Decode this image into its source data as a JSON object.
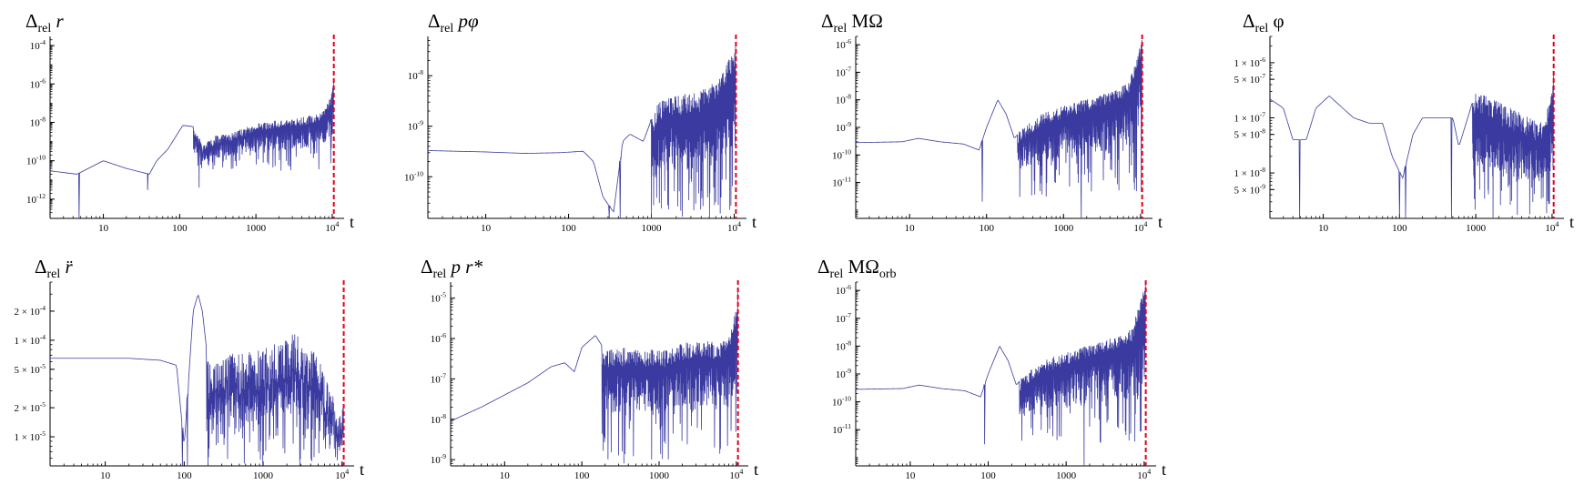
{
  "colors": {
    "series": "#3a3aa0",
    "marker": "#e3001b",
    "axis": "#000000"
  },
  "chart_data": [
    {
      "id": "rel-r",
      "type": "line",
      "title": {
        "main": "Δ",
        "sub": "rel",
        "rest": " r"
      },
      "xlabel": "t",
      "xscale": "log",
      "yscale": "log",
      "xlim": [
        2,
        11500
      ],
      "ylim": [
        1e-13,
        0.0003
      ],
      "xticks": [
        10,
        100,
        1000,
        10000
      ],
      "xtick_labels": [
        "10",
        "100",
        "1000",
        "10^4"
      ],
      "yticks": [
        1e-12,
        1e-10,
        1e-08,
        1e-06,
        0.0001
      ],
      "ytick_labels": [
        "10^-12",
        "10^-10",
        "10^-8",
        "10^-6",
        "10^-4"
      ],
      "marker_x": 10500,
      "series": [
        {
          "dips": [
            [
              4.8,
              1e-13
            ],
            [
              38,
              3e-12
            ],
            [
              180,
              4e-12
            ],
            [
              240,
              6e-11
            ],
            [
              300,
              2e-10
            ]
          ],
          "envelope": [
            [
              2,
              3e-11
            ],
            [
              4.5,
              2e-11
            ],
            [
              10,
              1e-10
            ],
            [
              20,
              4e-11
            ],
            [
              40,
              2e-11
            ],
            [
              50,
              1e-10
            ],
            [
              70,
              4e-10
            ],
            [
              110,
              7e-09
            ],
            [
              150,
              6e-09
            ],
            [
              200,
              6e-10
            ],
            [
              300,
              2e-09
            ],
            [
              500,
              3e-09
            ],
            [
              1000,
              1e-08
            ],
            [
              3000,
              1.5e-08
            ],
            [
              7000,
              3e-08
            ],
            [
              9500,
              2e-07
            ],
            [
              10400,
              2e-06
            ]
          ],
          "noise": {
            "from": 150,
            "to": 10400,
            "floor": 3e-11,
            "nodes": 260
          }
        }
      ]
    },
    {
      "id": "rel-p-phi",
      "type": "line",
      "title": {
        "main": "Δ",
        "sub": "rel",
        "rest": " pφ"
      },
      "xlabel": "t",
      "xscale": "log",
      "yscale": "log",
      "xlim": [
        2,
        11500
      ],
      "ylim": [
        1.5e-11,
        6e-08
      ],
      "xticks": [
        10,
        100,
        1000,
        10000
      ],
      "xtick_labels": [
        "10",
        "100",
        "1000",
        "10^4"
      ],
      "yticks": [
        1e-10,
        1e-09,
        1e-08
      ],
      "ytick_labels": [
        "10^-10",
        "10^-9",
        "10^-8"
      ],
      "marker_x": 10500,
      "series": [
        {
          "dips": [
            [
              310,
              1.5e-11
            ],
            [
              420,
              1.5e-11
            ],
            [
              1000,
              1.5e-11
            ]
          ],
          "envelope": [
            [
              2,
              3.3e-10
            ],
            [
              10,
              3.1e-10
            ],
            [
              30,
              2.9e-10
            ],
            [
              80,
              3e-10
            ],
            [
              150,
              3.2e-10
            ],
            [
              200,
              2e-10
            ],
            [
              260,
              4e-11
            ],
            [
              350,
              2e-11
            ],
            [
              450,
              5e-10
            ],
            [
              550,
              7e-10
            ],
            [
              800,
              5e-10
            ],
            [
              1200,
              3e-09
            ],
            [
              2000,
              4e-09
            ],
            [
              4000,
              5e-09
            ],
            [
              7000,
              1e-08
            ],
            [
              10400,
              4e-08
            ]
          ],
          "noise": {
            "from": 1000,
            "to": 10400,
            "floor": 1.5e-11,
            "nodes": 220
          }
        }
      ]
    },
    {
      "id": "rel-MOmega",
      "type": "line",
      "title": {
        "main": "Δ",
        "sub": "rel",
        "rest": " MΩ"
      },
      "xlabel": "t",
      "xscale": "log",
      "yscale": "log",
      "xlim": [
        2,
        11500
      ],
      "ylim": [
        5e-13,
        2e-06
      ],
      "xticks": [
        10,
        100,
        1000,
        10000
      ],
      "xtick_labels": [
        "10",
        "100",
        "1000",
        "10^4"
      ],
      "yticks": [
        1e-11,
        1e-10,
        1e-09,
        1e-08,
        1e-07,
        1e-06
      ],
      "ytick_labels": [
        "10^-11",
        "10^-10",
        "10^-9",
        "10^-8",
        "10^-7",
        "10^-6"
      ],
      "marker_x": 10500,
      "series": [
        {
          "dips": [
            [
              88,
              2e-12
            ],
            [
              270,
              3e-12
            ],
            [
              1700,
              5e-13
            ]
          ],
          "envelope": [
            [
              2,
              2.8e-10
            ],
            [
              8,
              3e-10
            ],
            [
              13,
              4e-10
            ],
            [
              25,
              3e-10
            ],
            [
              50,
              2.5e-10
            ],
            [
              80,
              1.5e-10
            ],
            [
              100,
              1e-09
            ],
            [
              140,
              1e-08
            ],
            [
              180,
              3e-09
            ],
            [
              230,
              4e-10
            ],
            [
              300,
              1e-09
            ],
            [
              500,
              3e-09
            ],
            [
              1000,
              6e-09
            ],
            [
              3000,
              1.5e-08
            ],
            [
              7000,
              4e-08
            ],
            [
              10400,
              1.5e-06
            ]
          ],
          "noise": {
            "from": 250,
            "to": 10400,
            "floor": 3e-12,
            "nodes": 240
          }
        }
      ]
    },
    {
      "id": "rel-phi",
      "type": "line",
      "title": {
        "main": "Δ",
        "sub": "rel",
        "rest": " φ"
      },
      "xlabel": "t",
      "xscale": "log",
      "yscale": "log",
      "xlim": [
        2,
        11500
      ],
      "ylim": [
        1.5e-09,
        3e-06
      ],
      "xticks": [
        10,
        100,
        1000,
        10000
      ],
      "xtick_labels": [
        "10",
        "100",
        "1000",
        "10^4"
      ],
      "yticks": [
        5e-09,
        1e-08,
        5e-08,
        1e-07,
        5e-07,
        1e-06
      ],
      "ytick_labels": [
        "5 × 10^-9",
        "1 × 10^-8",
        "5 × 10^-8",
        "1 × 10^-7",
        "5 × 10^-7",
        "1 × 10^-6"
      ],
      "marker_x": 10500,
      "series": [
        {
          "dips": [
            [
              4.9,
              1.5e-09
            ],
            [
              100,
              1.5e-09
            ],
            [
              120,
              1.5e-09
            ],
            [
              480,
              1.5e-09
            ]
          ],
          "envelope": [
            [
              2,
              2.2e-07
            ],
            [
              3,
              1.5e-07
            ],
            [
              4,
              4e-08
            ],
            [
              6,
              4e-08
            ],
            [
              8,
              1.5e-07
            ],
            [
              12,
              2.5e-07
            ],
            [
              18,
              1.5e-07
            ],
            [
              25,
              1e-07
            ],
            [
              40,
              8e-08
            ],
            [
              60,
              8e-08
            ],
            [
              80,
              2e-08
            ],
            [
              110,
              8e-09
            ],
            [
              150,
              5e-08
            ],
            [
              200,
              1e-07
            ],
            [
              400,
              1e-07
            ],
            [
              500,
              1e-07
            ],
            [
              600,
              3e-08
            ],
            [
              1000,
              3e-07
            ],
            [
              2000,
              2e-07
            ],
            [
              5000,
              1e-07
            ],
            [
              8000,
              8e-08
            ],
            [
              10400,
              6e-07
            ]
          ],
          "noise": {
            "from": 900,
            "to": 10400,
            "floor": 1.5e-09,
            "nodes": 230
          }
        }
      ]
    },
    {
      "id": "rel-rddot",
      "type": "line",
      "title": {
        "main": "Δ",
        "sub": "rel",
        "rest": " r̈"
      },
      "xlabel": "t",
      "xscale": "log",
      "yscale": "log",
      "xlim": [
        2,
        11500
      ],
      "ylim": [
        5e-06,
        0.0004
      ],
      "xticks": [
        10,
        100,
        1000,
        10000
      ],
      "xtick_labels": [
        "10",
        "100",
        "1000",
        "10^4"
      ],
      "yticks": [
        1e-05,
        2e-05,
        5e-05,
        0.0001,
        0.0002
      ],
      "ytick_labels": [
        "1 × 10^-5",
        "2 × 10^-5",
        "5 × 10^-5",
        "1 × 10^-4",
        "2 × 10^-4"
      ],
      "marker_x": 10500,
      "series": [
        {
          "dips": [
            [
              95,
              5e-06
            ],
            [
              110,
              5e-06
            ],
            [
              200,
              5e-06
            ]
          ],
          "envelope": [
            [
              2,
              6.5e-05
            ],
            [
              20,
              6.5e-05
            ],
            [
              50,
              6.2e-05
            ],
            [
              80,
              5.5e-05
            ],
            [
              100,
              8e-06
            ],
            [
              130,
              0.0002
            ],
            [
              150,
              0.0003
            ],
            [
              170,
              0.0002
            ],
            [
              200,
              6e-05
            ],
            [
              300,
              7e-05
            ],
            [
              1000,
              8e-05
            ],
            [
              2500,
              0.00012
            ],
            [
              4000,
              9e-05
            ],
            [
              7000,
              4e-05
            ],
            [
              10400,
              2e-05
            ]
          ],
          "noise": {
            "from": 190,
            "to": 10400,
            "floor": 5e-06,
            "nodes": 230
          }
        }
      ]
    },
    {
      "id": "rel-p-rstar",
      "type": "line",
      "title": {
        "main": "Δ",
        "sub": "rel",
        "rest": " p r*"
      },
      "xlabel": "t",
      "xscale": "log",
      "yscale": "log",
      "xlim": [
        2,
        11500
      ],
      "ylim": [
        7e-10,
        2.5e-05
      ],
      "xticks": [
        10,
        100,
        1000,
        10000
      ],
      "xtick_labels": [
        "10",
        "100",
        "1000",
        "10^4"
      ],
      "yticks": [
        1e-09,
        1e-08,
        1e-07,
        1e-06,
        1e-05
      ],
      "ytick_labels": [
        "10^-9",
        "10^-8",
        "10^-7",
        "10^-6",
        "10^-5"
      ],
      "marker_x": 10500,
      "series": [
        {
          "dips": [
            [
              240,
              1.5e-09
            ],
            [
              350,
              8e-10
            ],
            [
              800,
              1e-09
            ]
          ],
          "envelope": [
            [
              2,
              9e-09
            ],
            [
              5,
              2e-08
            ],
            [
              10,
              4e-08
            ],
            [
              20,
              8e-08
            ],
            [
              40,
              2e-07
            ],
            [
              60,
              2.5e-07
            ],
            [
              80,
              1.5e-07
            ],
            [
              100,
              6e-07
            ],
            [
              150,
              1.2e-06
            ],
            [
              200,
              5e-07
            ],
            [
              400,
              6e-07
            ],
            [
              1000,
              5e-07
            ],
            [
              3000,
              1e-06
            ],
            [
              6000,
              8e-07
            ],
            [
              9000,
              2e-06
            ],
            [
              10400,
              1.5e-05
            ]
          ],
          "noise": {
            "from": 180,
            "to": 10400,
            "floor": 1e-09,
            "nodes": 230
          }
        }
      ]
    },
    {
      "id": "rel-MOmega-orb",
      "type": "line",
      "title": {
        "main": "Δ",
        "sub": "rel",
        "rest": " MΩ",
        "rest_sub": "orb"
      },
      "xlabel": "t",
      "xscale": "log",
      "yscale": "log",
      "xlim": [
        2,
        11500
      ],
      "ylim": [
        5e-13,
        2e-06
      ],
      "xticks": [
        10,
        100,
        1000,
        10000
      ],
      "xtick_labels": [
        "10",
        "100",
        "1000",
        "10^4"
      ],
      "yticks": [
        1e-11,
        1e-10,
        1e-09,
        1e-08,
        1e-07,
        1e-06
      ],
      "ytick_labels": [
        "10^-11",
        "10^-10",
        "10^-9",
        "10^-8",
        "10^-7",
        "10^-6"
      ],
      "marker_x": 10500,
      "series": [
        {
          "dips": [
            [
              90,
              3e-12
            ],
            [
              270,
              4e-12
            ],
            [
              1700,
              5e-13
            ]
          ],
          "envelope": [
            [
              2,
              2.8e-10
            ],
            [
              8,
              3e-10
            ],
            [
              13,
              4e-10
            ],
            [
              25,
              3e-10
            ],
            [
              50,
              2.5e-10
            ],
            [
              80,
              1.5e-10
            ],
            [
              100,
              1e-09
            ],
            [
              140,
              1e-08
            ],
            [
              180,
              3e-09
            ],
            [
              230,
              4e-10
            ],
            [
              300,
              1e-09
            ],
            [
              500,
              3e-09
            ],
            [
              1000,
              6e-09
            ],
            [
              3000,
              1.5e-08
            ],
            [
              7000,
              4e-08
            ],
            [
              10400,
              2e-06
            ]
          ],
          "noise": {
            "from": 250,
            "to": 10400,
            "floor": 3e-12,
            "nodes": 240
          }
        }
      ]
    }
  ]
}
